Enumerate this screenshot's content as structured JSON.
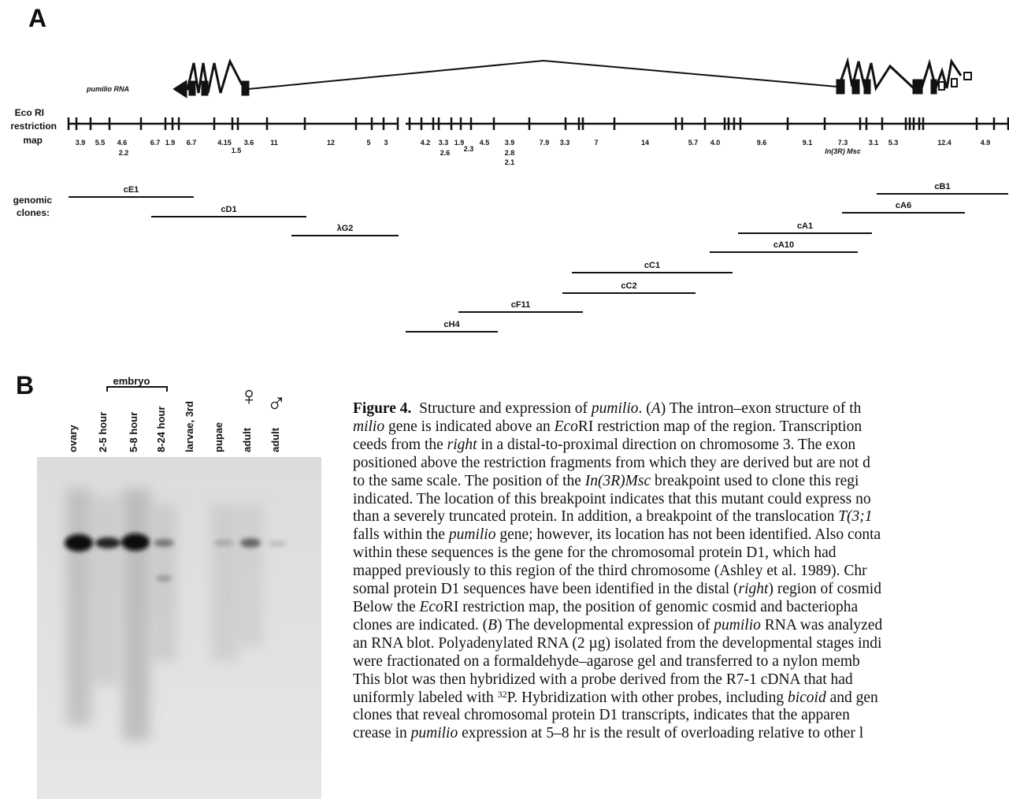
{
  "panel_a": {
    "label": "A",
    "rna_label": "pumilio RNA",
    "map_label": [
      "Eco RI",
      "restriction",
      "map"
    ],
    "fragments": [
      "3.9",
      "5.5",
      "4.6",
      "2.2",
      "6.7",
      "1.9",
      "6.7",
      "4.15",
      "1.5",
      "3.6",
      "11",
      "12",
      "5",
      "3",
      "4.2",
      "3.3",
      "2.6",
      "1.9",
      "2.3",
      "4.5",
      "3.9",
      "2.8",
      "2.1",
      "7.9",
      "3.3",
      "7",
      "14",
      "5.7",
      "4.0",
      "9.6",
      "9.1",
      "7.3",
      "In(3R) Msc",
      "3.1",
      "5.3",
      "12.4",
      "4.9"
    ],
    "clones_label": [
      "genomic",
      "clones:"
    ],
    "clones": [
      "cE1",
      "cD1",
      "λG2",
      "cB1",
      "cA6",
      "cA1",
      "cA10",
      "cC1",
      "cC2",
      "cF11",
      "cH4"
    ]
  },
  "panel_b": {
    "label": "B",
    "group_label": "embryo",
    "lanes": [
      "ovary",
      "2-5 hour",
      "5-8 hour",
      "8-24 hour",
      "larvae, 3rd",
      "pupae",
      "adult",
      "adult"
    ],
    "symbols": [
      "♀",
      "♂"
    ]
  },
  "caption": [
    [
      {
        "text": "Figure 4.",
        "style": "bold"
      },
      {
        "text": "  Structure and expression of "
      },
      {
        "text": "pumilio",
        "style": "italic"
      },
      {
        "text": ". ("
      },
      {
        "text": "A",
        "style": "italic"
      },
      {
        "text": ") The intron–exon structure of th"
      }
    ],
    [
      {
        "text": "milio",
        "style": "italic"
      },
      {
        "text": " gene is indicated above an "
      },
      {
        "text": "Eco",
        "style": "italic"
      },
      {
        "text": "RI restriction map of the region. Transcription"
      }
    ],
    [
      {
        "text": "ceeds from the "
      },
      {
        "text": "right",
        "style": "italic"
      },
      {
        "text": " in a distal-to-proximal direction on chromosome 3. The exon"
      }
    ],
    [
      {
        "text": "positioned above the restriction fragments from which they are derived but are not d"
      }
    ],
    [
      {
        "text": "to the same scale. The position of the "
      },
      {
        "text": "In(3R)Msc",
        "style": "italic"
      },
      {
        "text": " breakpoint used to clone this regi"
      }
    ],
    [
      {
        "text": "indicated. The location of this breakpoint indicates that this mutant could express no"
      }
    ],
    [
      {
        "text": "than a severely truncated protein. In addition, a breakpoint of the translocation "
      },
      {
        "text": "T(3;1",
        "style": "italic"
      }
    ],
    [
      {
        "text": "falls within the "
      },
      {
        "text": "pumilio",
        "style": "italic"
      },
      {
        "text": " gene; however, its location has not been identified. Also conta"
      }
    ],
    [
      {
        "text": "within these sequences is the gene for the chromosomal protein D1, which had"
      }
    ],
    [
      {
        "text": "mapped previously to this region of the third chromosome (Ashley et al. 1989). Chr"
      }
    ],
    [
      {
        "text": "somal protein D1 sequences have been identified in the distal ("
      },
      {
        "text": "right",
        "style": "italic"
      },
      {
        "text": ") region of cosmid"
      }
    ],
    [
      {
        "text": "Below the "
      },
      {
        "text": "Eco",
        "style": "italic"
      },
      {
        "text": "RI restriction map, the position of genomic cosmid and bacteriopha"
      }
    ],
    [
      {
        "text": "clones are indicated. ("
      },
      {
        "text": "B",
        "style": "italic"
      },
      {
        "text": ") The developmental expression of "
      },
      {
        "text": "pumilio",
        "style": "italic"
      },
      {
        "text": " RNA was analyzed"
      }
    ],
    [
      {
        "text": "an RNA blot. Polyadenylated RNA (2 µg) isolated from the developmental stages indi"
      }
    ],
    [
      {
        "text": "were fractionated on a formaldehyde–agarose gel and transferred to a nylon memb"
      }
    ],
    [
      {
        "text": "This blot was then hybridized with a probe derived from the R7-1 cDNA that had"
      }
    ],
    [
      {
        "text": "uniformly labeled with "
      },
      {
        "text": "32",
        "style": "sup"
      },
      {
        "text": "P. Hybridization with other probes, including "
      },
      {
        "text": "bicoid",
        "style": "italic"
      },
      {
        "text": " and gen"
      }
    ],
    [
      {
        "text": "clones that reveal chromosomal protein D1 transcripts, indicates that the apparen"
      }
    ],
    [
      {
        "text": "crease in "
      },
      {
        "text": "pumilio",
        "style": "italic"
      },
      {
        "text": " expression at 5–8 hr is the result of overloading relative to other l"
      }
    ]
  ]
}
